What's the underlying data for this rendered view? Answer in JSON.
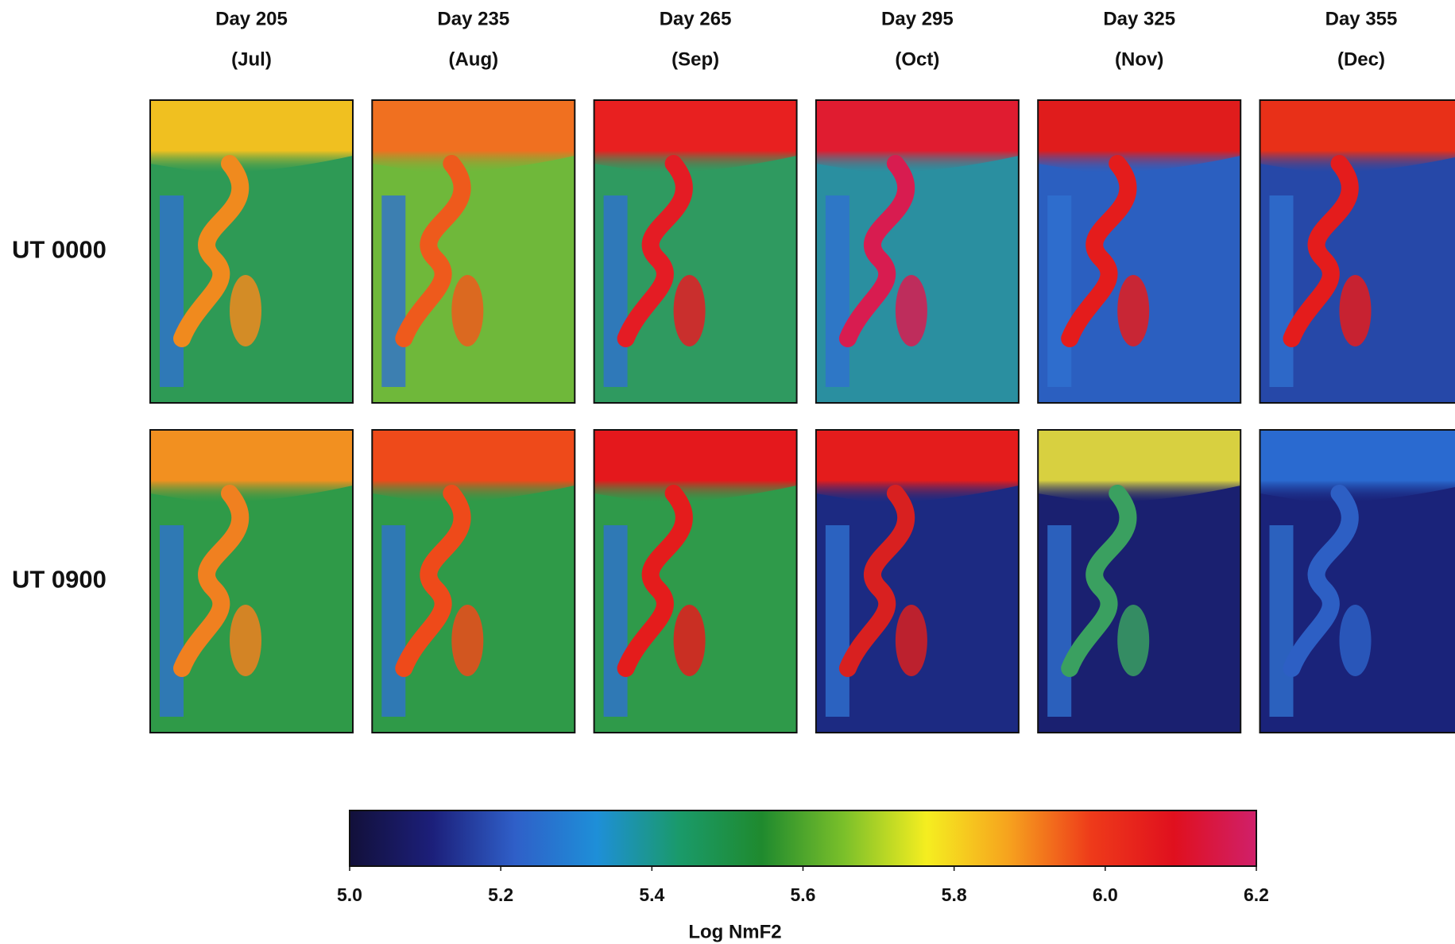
{
  "chart_data": {
    "type": "heatmap-grid",
    "columns": [
      {
        "day": "Day 205",
        "month": "(Jul)"
      },
      {
        "day": "Day 235",
        "month": "(Aug)"
      },
      {
        "day": "Day 265",
        "month": "(Sep)"
      },
      {
        "day": "Day 295",
        "month": "(Oct)"
      },
      {
        "day": "Day 325",
        "month": "(Nov)"
      },
      {
        "day": "Day 355",
        "month": "(Dec)"
      }
    ],
    "rows": [
      "UT 0000",
      "UT 0900"
    ],
    "colorbar": {
      "label": "Log NmF2",
      "lim": [
        5.0,
        6.2
      ],
      "ticks": [
        {
          "value": 5,
          "label": "5.0"
        },
        {
          "value": 5.2,
          "label": "5.2"
        },
        {
          "value": 5.4,
          "label": "5.4"
        },
        {
          "value": 5.6,
          "label": "5.6"
        },
        {
          "value": 5.8,
          "label": "5.8"
        },
        {
          "value": 6,
          "label": "6.0"
        },
        {
          "value": 6.2,
          "label": "6.2"
        }
      ],
      "colors": [
        "#12103a",
        "#1c1f7a",
        "#2f5fc8",
        "#1e8fd8",
        "#1a9a6a",
        "#1f8a2e",
        "#7bc02a",
        "#f5ee20",
        "#f6a21e",
        "#ee3a1a",
        "#e0101e",
        "#d0206a"
      ]
    }
  }
}
